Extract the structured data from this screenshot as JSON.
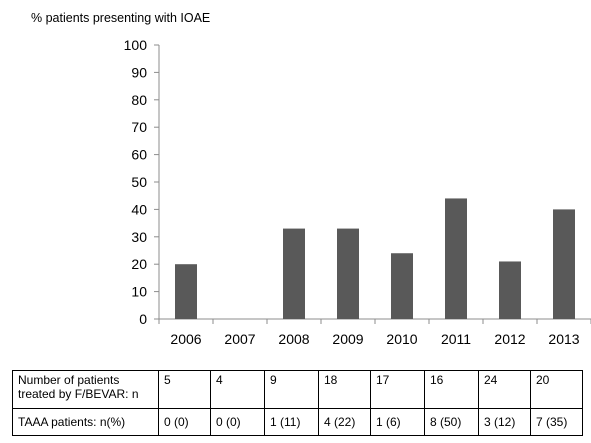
{
  "chart_data": {
    "type": "bar",
    "ylabel": "% patients presenting with IOAE",
    "categories": [
      "2006",
      "2007",
      "2008",
      "2009",
      "2010",
      "2011",
      "2012",
      "2013"
    ],
    "values": [
      20,
      0,
      33,
      33,
      24,
      44,
      21,
      40
    ],
    "ylim": [
      0,
      100
    ],
    "yticks": [
      "0",
      "10",
      "20",
      "30",
      "40",
      "50",
      "60",
      "70",
      "80",
      "90",
      "100"
    ],
    "grid": false,
    "bar_color": "#595959"
  },
  "table": {
    "rows": [
      {
        "label": "Number of patients treated by F/BEVAR: n",
        "values": [
          "5",
          "4",
          "9",
          "18",
          "17",
          "16",
          "24",
          "20"
        ]
      },
      {
        "label": "TAAA patients: n(%)",
        "values": [
          "0 (0)",
          "0 (0)",
          "1 (11)",
          "4 (22)",
          "1 (6)",
          "8 (50)",
          "3 (12)",
          "7 (35)"
        ]
      }
    ]
  }
}
